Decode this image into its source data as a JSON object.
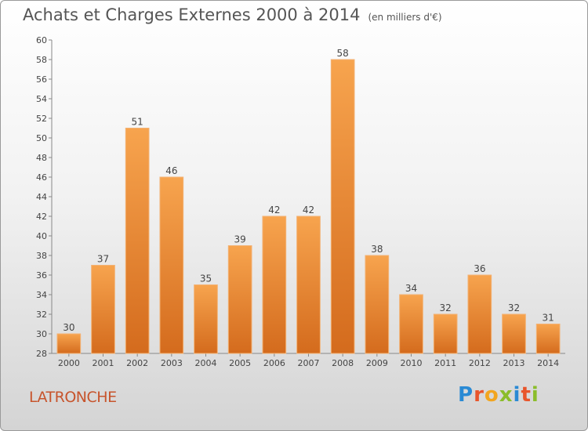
{
  "title": "Achats et Charges Externes 2000 à 2014",
  "subtitle": "(en milliers d'€)",
  "location": "LATRONCHE",
  "logo_text": "Proxiti",
  "colors": {
    "bar_light": "#f7a44e",
    "bar_dark": "#d46b1d",
    "location": "#c7542c"
  },
  "chart_data": {
    "type": "bar",
    "title": "Achats et Charges Externes 2000 à 2014",
    "subtitle": "(en milliers d'€)",
    "categories": [
      "2000",
      "2001",
      "2002",
      "2003",
      "2004",
      "2005",
      "2006",
      "2007",
      "2008",
      "2009",
      "2010",
      "2011",
      "2012",
      "2013",
      "2014"
    ],
    "values": [
      30,
      37,
      51,
      46,
      35,
      39,
      42,
      42,
      58,
      38,
      34,
      32,
      36,
      32,
      31
    ],
    "ylim": [
      28,
      60
    ],
    "yticks": [
      28,
      30,
      32,
      34,
      36,
      38,
      40,
      42,
      44,
      46,
      48,
      50,
      52,
      54,
      56,
      58,
      60
    ],
    "grid": false,
    "data_labels": true
  }
}
